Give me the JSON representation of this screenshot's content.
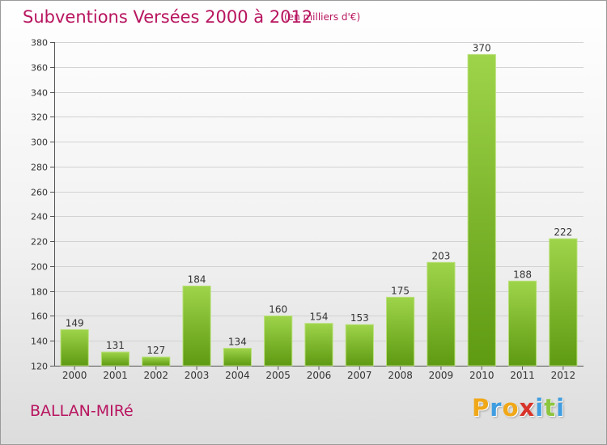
{
  "header": {
    "title": "Subventions Versées 2000 à 2012",
    "unit": "(en milliers d'€)"
  },
  "footer": {
    "commune": "BALLAN-MIRé",
    "brand_letters": [
      "P",
      "r",
      "o",
      "x",
      "i",
      "t",
      "i"
    ],
    "brand_colors": [
      "#f0a818",
      "#3f9de0",
      "#f0a818",
      "#d8332a",
      "#3f9de0",
      "#8cc63f",
      "#3f9de0"
    ]
  },
  "chart_data": {
    "type": "bar",
    "title": "Subventions Versées 2000 à 2012",
    "subtitle": "(en milliers d'€)",
    "categories": [
      "2000",
      "2001",
      "2002",
      "2003",
      "2004",
      "2005",
      "2006",
      "2007",
      "2008",
      "2009",
      "2010",
      "2011",
      "2012"
    ],
    "values": [
      149,
      131,
      127,
      184,
      134,
      160,
      154,
      153,
      175,
      203,
      370,
      188,
      222
    ],
    "ylim": [
      120,
      380
    ],
    "yticks": [
      120,
      140,
      160,
      180,
      200,
      220,
      240,
      260,
      280,
      300,
      320,
      340,
      360,
      380
    ],
    "grid": true,
    "bar_color_top": "#9ed44a",
    "bar_color_bottom": "#5e9a12",
    "grid_color": "#d2d2d2",
    "xlabel": "",
    "ylabel": ""
  }
}
